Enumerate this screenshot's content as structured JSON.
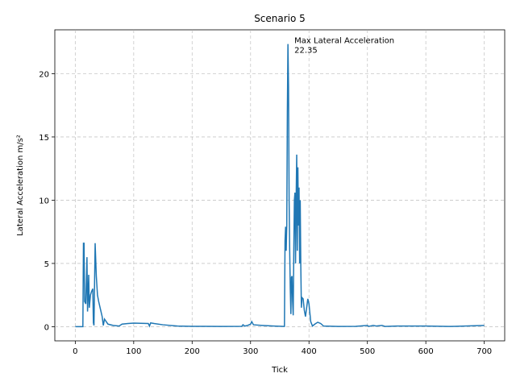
{
  "chart_data": {
    "type": "line",
    "title": "Scenario 5",
    "xlabel": "Tick",
    "ylabel": "Lateral Acceleration m/s²",
    "xlim": [
      -35,
      735
    ],
    "ylim": [
      -1.12,
      23.47
    ],
    "xticks": [
      0,
      100,
      200,
      300,
      400,
      500,
      600,
      700
    ],
    "yticks": [
      0,
      5,
      10,
      15,
      20
    ],
    "grid": true,
    "annotation": {
      "label": "Max Lateral Acceleration",
      "value": 22.35,
      "x": 364
    },
    "series": [
      {
        "color": "#1f77b4",
        "x": [
          0,
          13,
          14,
          15,
          16,
          18,
          20,
          21,
          22,
          23,
          24,
          26,
          28,
          30,
          31,
          32,
          34,
          36,
          38,
          40,
          43,
          46,
          48,
          50,
          53,
          56,
          65,
          75,
          80,
          90,
          100,
          125,
          127,
          129,
          135,
          150,
          175,
          200,
          250,
          285,
          287,
          290,
          295,
          300,
          302,
          305,
          320,
          340,
          358,
          359,
          360,
          361,
          362,
          363,
          364,
          365,
          366,
          367,
          368,
          369,
          370,
          371,
          372,
          373,
          374,
          375,
          376,
          377,
          378,
          379,
          380,
          381,
          382,
          383,
          384,
          385,
          386,
          387,
          388,
          390,
          392,
          394,
          396,
          398,
          400,
          403,
          406,
          410,
          415,
          420,
          425,
          450,
          480,
          500,
          502,
          510,
          515,
          525,
          530,
          550,
          600,
          640,
          650,
          700
        ],
        "values": [
          0,
          0,
          6.6,
          6.6,
          2,
          1.8,
          5.5,
          1.2,
          2.5,
          4.1,
          1.5,
          2.5,
          2.8,
          3,
          0.3,
          0.1,
          6.6,
          4,
          2.5,
          2,
          1.4,
          0.8,
          0.1,
          0.6,
          0.4,
          0.2,
          0.1,
          0.05,
          0.2,
          0.25,
          0.28,
          0.25,
          0.05,
          0.3,
          0.25,
          0.15,
          0.05,
          0.03,
          0.02,
          0.03,
          0.15,
          0.05,
          0.1,
          0.2,
          0.4,
          0.15,
          0.1,
          0.05,
          0.02,
          6.8,
          7.9,
          6,
          8,
          17,
          22.35,
          19,
          10,
          6,
          3,
          1,
          3.9,
          4,
          2,
          0.9,
          6,
          10,
          10.6,
          5,
          10,
          13.6,
          6,
          12.6,
          8,
          11,
          5,
          10,
          4.8,
          1.5,
          2.3,
          2.2,
          1.3,
          0.8,
          1.5,
          2.2,
          1.8,
          0.4,
          0.05,
          0.2,
          0.35,
          0.25,
          0.05,
          0.02,
          0.03,
          0.1,
          0.02,
          0.1,
          0.05,
          0.1,
          0.02,
          0.05,
          0.05,
          0.02,
          0.03,
          0.1
        ]
      }
    ]
  }
}
